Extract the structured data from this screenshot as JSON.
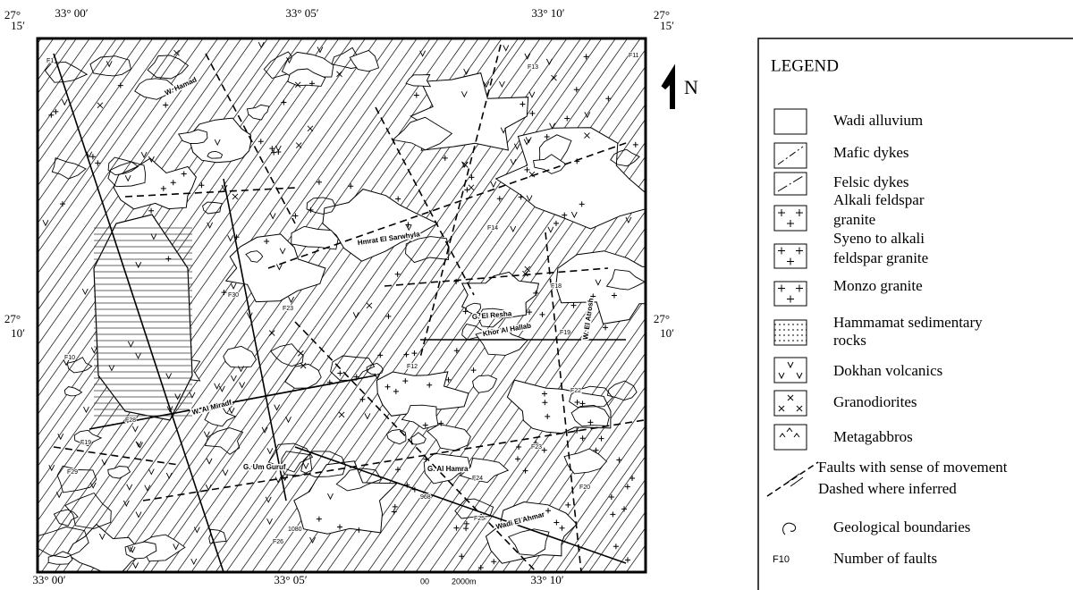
{
  "map": {
    "top_labels": [
      "33° 00′",
      "33° 05′",
      "33° 10′"
    ],
    "bottom_labels": [
      "33° 00′",
      "33° 05′",
      "33° 10′"
    ],
    "left_labels": [
      [
        "27°",
        "15′"
      ],
      [
        "27°",
        "10′"
      ]
    ],
    "right_labels": [
      [
        "27°",
        "15′"
      ],
      [
        "27°",
        "10′"
      ]
    ],
    "north": "N",
    "place_names": [
      "W. Hamad",
      "Hmrat El Sarwhyla",
      "G. El Resha",
      "Khor Al Hallab",
      "W. El Atrosh",
      "W. Al Miradf",
      "G. Um Guruf",
      "G. Al Hamra",
      "Wadi El Ahmar"
    ],
    "fault_labels": [
      "F1",
      "F11",
      "F13",
      "F14",
      "F18",
      "F19",
      "F12",
      "F30",
      "F23",
      "F28",
      "F19",
      "F29",
      "F20",
      "F22",
      "F23",
      "F24",
      "F25",
      "F26",
      "F10"
    ],
    "elevations": [
      "1080",
      "968"
    ],
    "scale": [
      "00",
      "2000m"
    ]
  },
  "legend": {
    "title": "LEGEND",
    "items": [
      {
        "lines": [
          "Wadi alluvium"
        ]
      },
      {
        "lines": [
          "Mafic dykes"
        ]
      },
      {
        "lines": [
          "Felsic dykes"
        ]
      },
      {
        "lines": [
          "Alkali feldspar",
          "granite"
        ]
      },
      {
        "lines": [
          "Syeno to alkali",
          "feldspar granite"
        ]
      },
      {
        "lines": [
          "Monzo granite"
        ]
      },
      {
        "lines": [
          "Hammamat sedimentary",
          "rocks"
        ]
      },
      {
        "lines": [
          "Dokhan volcanics"
        ]
      },
      {
        "lines": [
          "Granodiorites"
        ]
      },
      {
        "lines": [
          "Metagabbros"
        ]
      },
      {
        "lines": [
          "Faults with sense of movement",
          "Dashed where inferred"
        ]
      },
      {
        "lines": [
          "Geological boundaries"
        ]
      },
      {
        "lines": [
          "Number of faults"
        ],
        "symbol": "F10"
      }
    ]
  }
}
